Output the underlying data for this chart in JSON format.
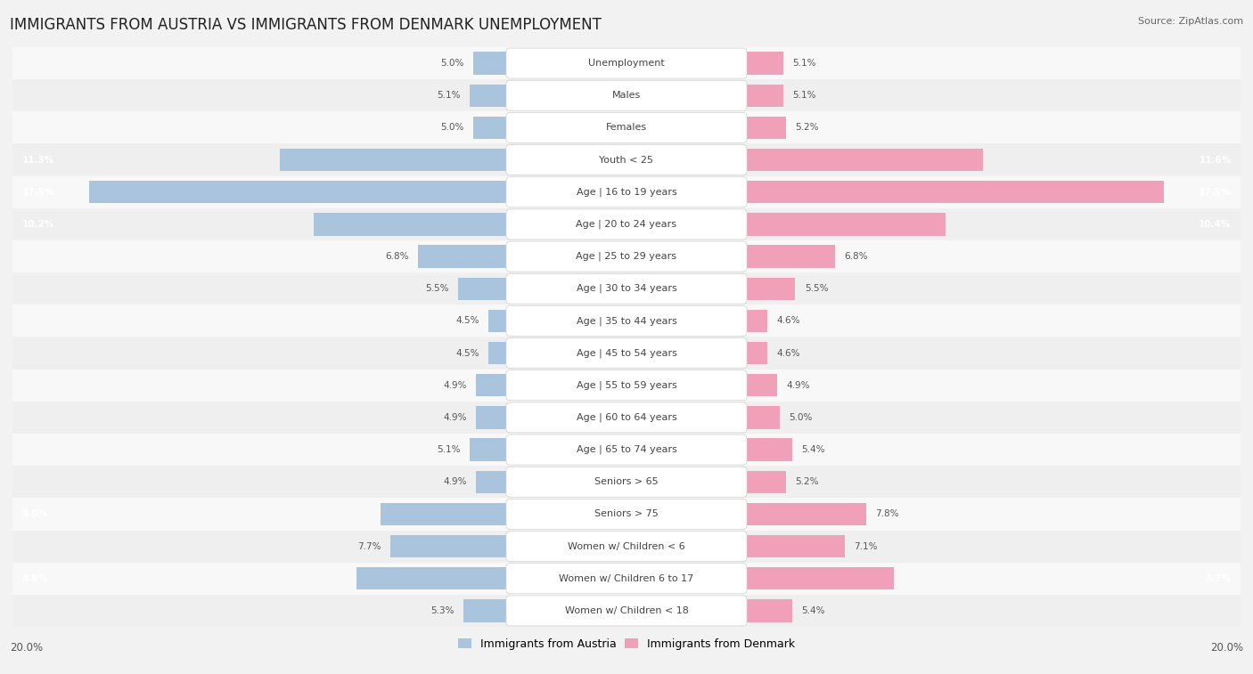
{
  "title": "IMMIGRANTS FROM AUSTRIA VS IMMIGRANTS FROM DENMARK UNEMPLOYMENT",
  "source": "Source: ZipAtlas.com",
  "categories": [
    "Unemployment",
    "Males",
    "Females",
    "Youth < 25",
    "Age | 16 to 19 years",
    "Age | 20 to 24 years",
    "Age | 25 to 29 years",
    "Age | 30 to 34 years",
    "Age | 35 to 44 years",
    "Age | 45 to 54 years",
    "Age | 55 to 59 years",
    "Age | 60 to 64 years",
    "Age | 65 to 74 years",
    "Seniors > 65",
    "Seniors > 75",
    "Women w/ Children < 6",
    "Women w/ Children 6 to 17",
    "Women w/ Children < 18"
  ],
  "austria_values": [
    5.0,
    5.1,
    5.0,
    11.3,
    17.5,
    10.2,
    6.8,
    5.5,
    4.5,
    4.5,
    4.9,
    4.9,
    5.1,
    4.9,
    8.0,
    7.7,
    8.8,
    5.3
  ],
  "denmark_values": [
    5.1,
    5.1,
    5.2,
    11.6,
    17.5,
    10.4,
    6.8,
    5.5,
    4.6,
    4.6,
    4.9,
    5.0,
    5.4,
    5.2,
    7.8,
    7.1,
    8.7,
    5.4
  ],
  "austria_color": "#aac4de",
  "denmark_color": "#f0a0b8",
  "austria_color_bright": "#6699cc",
  "denmark_color_bright": "#e8607a",
  "austria_label": "Immigrants from Austria",
  "denmark_label": "Immigrants from Denmark",
  "max_val": 20.0,
  "bg_color": "#f2f2f2",
  "row_bg_light": "#f8f8f8",
  "row_bg_dark": "#efefef",
  "title_fontsize": 12,
  "source_fontsize": 8,
  "label_fontsize": 8,
  "value_fontsize": 7.5
}
